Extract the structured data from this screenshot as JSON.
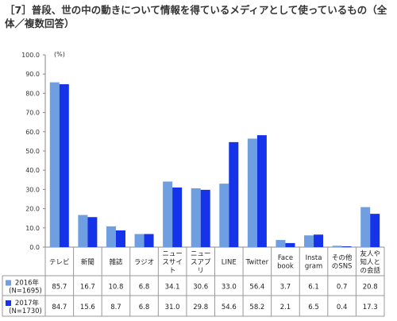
{
  "title": "［7］普段、世の中の動きについて情報を得ているメディアとして使っているもの（全体／複数回答）",
  "chart_data": {
    "type": "bar",
    "title": "［7］普段、世の中の動きについて情報を得ているメディアとして使っているもの（全体／複数回答）",
    "unit_label": "(%)",
    "ylim": [
      0,
      100
    ],
    "yticks": [
      "0.0",
      "10.0",
      "20.0",
      "30.0",
      "40.0",
      "50.0",
      "60.0",
      "70.0",
      "80.0",
      "90.0",
      "100.0"
    ],
    "grid": false,
    "categories": [
      [
        "テレビ"
      ],
      [
        "新聞"
      ],
      [
        "雑誌"
      ],
      [
        "ラジオ"
      ],
      [
        "ニュー",
        "スサイ",
        "ト"
      ],
      [
        "ニュー",
        "スアプ",
        "リ"
      ],
      [
        "LINE"
      ],
      [
        "Twitter"
      ],
      [
        "Face",
        "book"
      ],
      [
        "Insta",
        "gram"
      ],
      [
        "その他",
        "のSNS"
      ],
      [
        "友人や",
        "知人と",
        "の会話"
      ]
    ],
    "series": [
      {
        "name": [
          "2016年",
          "(N=1695)"
        ],
        "color": "#6f9fe0",
        "values": [
          85.7,
          16.7,
          10.8,
          6.8,
          34.1,
          30.6,
          33.0,
          56.4,
          3.7,
          6.1,
          0.7,
          20.8
        ],
        "labels": [
          "85.7",
          "16.7",
          "10.8",
          "6.8",
          "34.1",
          "30.6",
          "33.0",
          "56.4",
          "3.7",
          "6.1",
          "0.7",
          "20.8"
        ]
      },
      {
        "name": [
          "2017年",
          "(N=1730)"
        ],
        "color": "#1533e8",
        "values": [
          84.7,
          15.6,
          8.7,
          6.8,
          31.0,
          29.8,
          54.6,
          58.2,
          2.1,
          6.5,
          0.4,
          17.3
        ],
        "labels": [
          "84.7",
          "15.6",
          "8.7",
          "6.8",
          "31.0",
          "29.8",
          "54.6",
          "58.2",
          "2.1",
          "6.5",
          "0.4",
          "17.3"
        ]
      }
    ]
  }
}
